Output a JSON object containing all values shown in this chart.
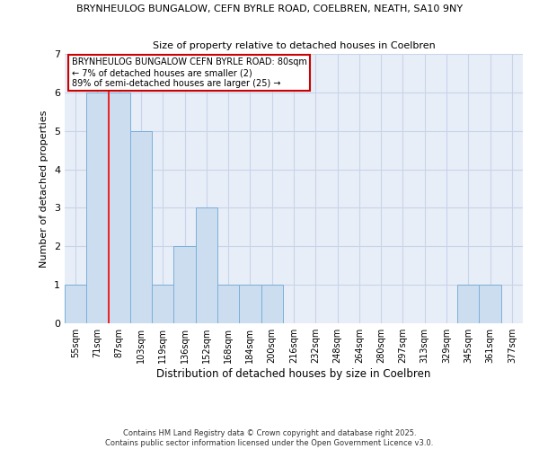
{
  "title_line1": "BRYNHEULOG BUNGALOW, CEFN BYRLE ROAD, COELBREN, NEATH, SA10 9NY",
  "title_line2": "Size of property relative to detached houses in Coelbren",
  "xlabel": "Distribution of detached houses by size in Coelbren",
  "ylabel": "Number of detached properties",
  "bin_labels": [
    "55sqm",
    "71sqm",
    "87sqm",
    "103sqm",
    "119sqm",
    "136sqm",
    "152sqm",
    "168sqm",
    "184sqm",
    "200sqm",
    "216sqm",
    "232sqm",
    "248sqm",
    "264sqm",
    "280sqm",
    "297sqm",
    "313sqm",
    "329sqm",
    "345sqm",
    "361sqm",
    "377sqm"
  ],
  "bar_values": [
    1,
    6,
    6,
    5,
    1,
    2,
    3,
    1,
    1,
    1,
    0,
    0,
    0,
    0,
    0,
    0,
    0,
    0,
    1,
    1,
    0
  ],
  "bar_color": "#ccddf0",
  "bar_edge_color": "#7ab0d8",
  "red_line_x": 1.5,
  "annotation_title": "BRYNHEULOG BUNGALOW CEFN BYRLE ROAD: 80sqm",
  "annotation_line2": "← 7% of detached houses are smaller (2)",
  "annotation_line3": "89% of semi-detached houses are larger (25) →",
  "annotation_box_color": "#ffffff",
  "annotation_box_edge": "#cc0000",
  "ylim": [
    0,
    7
  ],
  "yticks": [
    0,
    1,
    2,
    3,
    4,
    5,
    6,
    7
  ],
  "grid_color": "#c8d4e8",
  "footer_line1": "Contains HM Land Registry data © Crown copyright and database right 2025.",
  "footer_line2": "Contains public sector information licensed under the Open Government Licence v3.0.",
  "bg_color": "#e8eef8"
}
